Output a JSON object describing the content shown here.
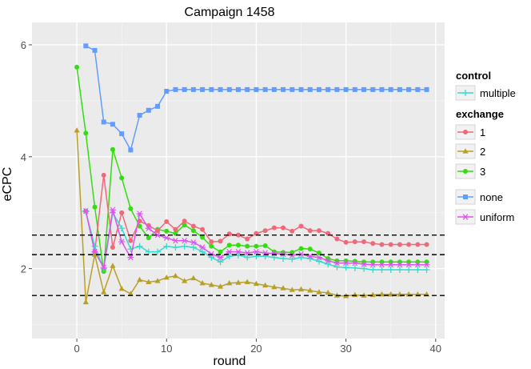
{
  "chart_data": {
    "type": "line",
    "title": "Campaign 1458",
    "xlabel": "round",
    "ylabel": "eCPC",
    "xlim": [
      -5,
      41
    ],
    "ylim": [
      0.75,
      6.4
    ],
    "x_ticks": [
      0,
      10,
      20,
      30,
      40
    ],
    "y_ticks": [
      2,
      4,
      6
    ],
    "grid": true,
    "background": "#ebebeb",
    "reference_lines": [
      {
        "y": 2.6,
        "style": "dashed",
        "color": "#000000"
      },
      {
        "y": 2.25,
        "style": "dashed",
        "color": "#000000"
      },
      {
        "y": 1.52,
        "style": "dashed",
        "color": "#000000"
      }
    ],
    "legend_groups": [
      {
        "title": "control",
        "items": [
          {
            "label": "multiple",
            "series": "multiple"
          }
        ]
      },
      {
        "title": "exchange",
        "items": [
          {
            "label": "1",
            "series": "exchange-1"
          },
          {
            "label": "2",
            "series": "exchange-2"
          },
          {
            "label": "3",
            "series": "exchange-3"
          }
        ]
      },
      {
        "title": "",
        "items": [
          {
            "label": "none",
            "series": "none"
          },
          {
            "label": "uniform",
            "series": "uniform"
          }
        ]
      }
    ],
    "legend_position": "right",
    "series": [
      {
        "id": "none",
        "color": "#619cff",
        "marker": "square",
        "x": [
          1,
          2,
          3,
          4,
          5,
          6,
          7,
          8,
          9,
          10,
          11,
          12,
          13,
          14,
          15,
          16,
          17,
          18,
          19,
          20,
          21,
          22,
          23,
          24,
          25,
          26,
          27,
          28,
          29,
          30,
          31,
          32,
          33,
          34,
          35,
          36,
          37,
          38,
          39
        ],
        "y": [
          5.98,
          5.9,
          4.62,
          4.58,
          4.41,
          4.12,
          4.74,
          4.83,
          4.9,
          5.17,
          5.2,
          5.2,
          5.2,
          5.2,
          5.2,
          5.2,
          5.2,
          5.2,
          5.2,
          5.2,
          5.2,
          5.2,
          5.2,
          5.2,
          5.2,
          5.2,
          5.2,
          5.2,
          5.2,
          5.2,
          5.2,
          5.2,
          5.2,
          5.2,
          5.2,
          5.2,
          5.2,
          5.2,
          5.2
        ]
      },
      {
        "id": "exchange-3",
        "color": "#33dd11",
        "marker": "circle",
        "x": [
          0,
          1,
          2,
          3,
          4,
          5,
          6,
          7,
          8,
          9,
          10,
          11,
          12,
          13,
          14,
          15,
          16,
          17,
          18,
          19,
          20,
          21,
          22,
          23,
          24,
          25,
          26,
          27,
          28,
          29,
          30,
          31,
          32,
          33,
          34,
          35,
          36,
          37,
          38,
          39
        ],
        "y": [
          5.6,
          4.42,
          3.1,
          1.95,
          4.13,
          3.62,
          3.07,
          2.76,
          2.55,
          2.7,
          2.67,
          2.63,
          2.78,
          2.68,
          2.56,
          2.4,
          2.3,
          2.42,
          2.42,
          2.4,
          2.4,
          2.41,
          2.3,
          2.29,
          2.29,
          2.36,
          2.35,
          2.28,
          2.18,
          2.14,
          2.14,
          2.13,
          2.12,
          2.12,
          2.12,
          2.12,
          2.12,
          2.12,
          2.12,
          2.12
        ]
      },
      {
        "id": "exchange-1",
        "color": "#f0697a",
        "marker": "circle",
        "x": [
          1,
          2,
          3,
          4,
          5,
          6,
          7,
          8,
          9,
          10,
          11,
          12,
          13,
          14,
          15,
          16,
          17,
          18,
          19,
          20,
          21,
          22,
          23,
          24,
          25,
          26,
          27,
          28,
          29,
          30,
          31,
          32,
          33,
          34,
          35,
          36,
          37,
          38,
          39
        ],
        "y": [
          3.03,
          2.3,
          3.67,
          2.38,
          3.0,
          2.5,
          2.85,
          2.77,
          2.68,
          2.84,
          2.7,
          2.85,
          2.76,
          2.7,
          2.48,
          2.49,
          2.62,
          2.6,
          2.53,
          2.63,
          2.68,
          2.73,
          2.73,
          2.67,
          2.76,
          2.68,
          2.68,
          2.63,
          2.53,
          2.47,
          2.48,
          2.48,
          2.45,
          2.43,
          2.43,
          2.43,
          2.43,
          2.43,
          2.43
        ]
      },
      {
        "id": "multiple",
        "color": "#33ddcc",
        "marker": "plus",
        "x": [
          1,
          2,
          3,
          4,
          5,
          6,
          7,
          8,
          9,
          10,
          11,
          12,
          13,
          14,
          15,
          16,
          17,
          18,
          19,
          20,
          21,
          22,
          23,
          24,
          25,
          26,
          27,
          28,
          29,
          30,
          31,
          32,
          33,
          34,
          35,
          36,
          37,
          38,
          39
        ],
        "y": [
          3.02,
          2.4,
          2.0,
          3.0,
          2.72,
          2.35,
          2.4,
          2.3,
          2.3,
          2.4,
          2.38,
          2.4,
          2.38,
          2.3,
          2.2,
          2.12,
          2.22,
          2.24,
          2.2,
          2.22,
          2.22,
          2.2,
          2.18,
          2.17,
          2.2,
          2.18,
          2.13,
          2.08,
          2.03,
          2.02,
          2.01,
          2.0,
          1.98,
          1.98,
          1.98,
          1.98,
          1.98,
          1.98,
          1.98
        ]
      },
      {
        "id": "uniform",
        "color": "#dd55ee",
        "marker": "asterisk",
        "x": [
          1,
          2,
          3,
          4,
          5,
          6,
          7,
          8,
          9,
          10,
          11,
          12,
          13,
          14,
          15,
          16,
          17,
          18,
          19,
          20,
          21,
          22,
          23,
          24,
          25,
          26,
          27,
          28,
          29,
          30,
          31,
          32,
          33,
          34,
          35,
          36,
          37,
          38,
          39
        ],
        "y": [
          3.03,
          2.3,
          2.02,
          3.05,
          2.48,
          2.2,
          2.98,
          2.72,
          2.6,
          2.55,
          2.5,
          2.5,
          2.47,
          2.38,
          2.26,
          2.2,
          2.3,
          2.3,
          2.28,
          2.3,
          2.28,
          2.27,
          2.26,
          2.24,
          2.26,
          2.22,
          2.2,
          2.14,
          2.1,
          2.1,
          2.1,
          2.08,
          2.07,
          2.07,
          2.07,
          2.07,
          2.07,
          2.07,
          2.07
        ]
      },
      {
        "id": "exchange-2",
        "color": "#b8a028",
        "marker": "triangle",
        "x": [
          0,
          1,
          2,
          3,
          4,
          5,
          6,
          7,
          8,
          9,
          10,
          11,
          12,
          13,
          14,
          15,
          16,
          17,
          18,
          19,
          20,
          21,
          22,
          23,
          24,
          25,
          26,
          27,
          28,
          29,
          30,
          31,
          32,
          33,
          34,
          35,
          36,
          37,
          38,
          39
        ],
        "y": [
          4.47,
          1.4,
          2.25,
          1.58,
          2.05,
          1.64,
          1.55,
          1.8,
          1.76,
          1.78,
          1.84,
          1.87,
          1.78,
          1.83,
          1.74,
          1.71,
          1.68,
          1.74,
          1.75,
          1.76,
          1.73,
          1.7,
          1.67,
          1.65,
          1.62,
          1.63,
          1.61,
          1.58,
          1.57,
          1.52,
          1.51,
          1.53,
          1.52,
          1.53,
          1.54,
          1.54,
          1.54,
          1.54,
          1.54,
          1.54
        ]
      }
    ]
  }
}
